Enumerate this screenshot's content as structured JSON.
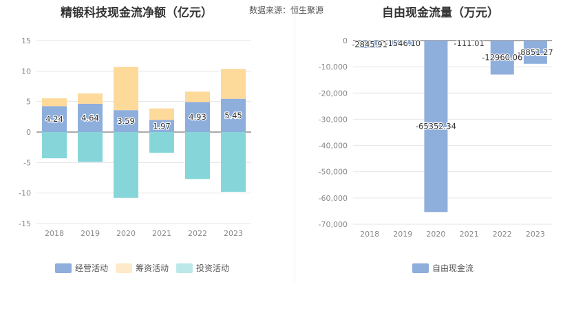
{
  "source_text": "数据来源：恒生聚源",
  "chart_data": [
    {
      "type": "bar",
      "stacked": true,
      "title": "精锻科技现金流净额（亿元）",
      "categories": [
        "2018",
        "2019",
        "2020",
        "2021",
        "2022",
        "2023"
      ],
      "ylim": [
        -15,
        15
      ],
      "yticks": [
        15,
        10,
        5,
        0,
        -5,
        -10,
        -15
      ],
      "grid": true,
      "legend_position": "bottom",
      "series": [
        {
          "name": "经营活动",
          "color": "#8eaedc",
          "values": [
            4.24,
            4.64,
            3.59,
            1.97,
            4.93,
            5.45
          ],
          "labels": [
            "4.24",
            "4.64",
            "3.59",
            "1.97",
            "4.93",
            "5.45"
          ]
        },
        {
          "name": "筹资活动",
          "color": "#fdd99a",
          "values": [
            1.3,
            1.7,
            7.1,
            1.9,
            1.7,
            4.9
          ]
        },
        {
          "name": "投资活动",
          "color": "#86d6d9",
          "values": [
            -4.3,
            -4.9,
            -10.8,
            -3.4,
            -7.7,
            -9.8
          ]
        }
      ]
    },
    {
      "type": "bar",
      "title": "自由现金流量（万元）",
      "categories": [
        "2018",
        "2019",
        "2020",
        "2021",
        "2022",
        "2023"
      ],
      "ylim": [
        -70000,
        0
      ],
      "yticks": [
        0,
        -10000,
        -20000,
        -30000,
        -40000,
        -50000,
        -60000,
        -70000
      ],
      "ytick_labels": [
        "0",
        "-10,000",
        "-20,000",
        "-30,000",
        "-40,000",
        "-50,000",
        "-60,000",
        "-70,000"
      ],
      "grid": true,
      "legend_position": "bottom",
      "series": [
        {
          "name": "自由现金流",
          "color": "#8eaedc",
          "values": [
            -2845.91,
            -1546.1,
            -65352.34,
            -111.01,
            -12960.06,
            -8851.27
          ],
          "labels": [
            "-2845.91",
            "-1546.10",
            "-65352.34",
            "-111.01",
            "-12960.06",
            "-8851.27"
          ]
        }
      ]
    }
  ]
}
